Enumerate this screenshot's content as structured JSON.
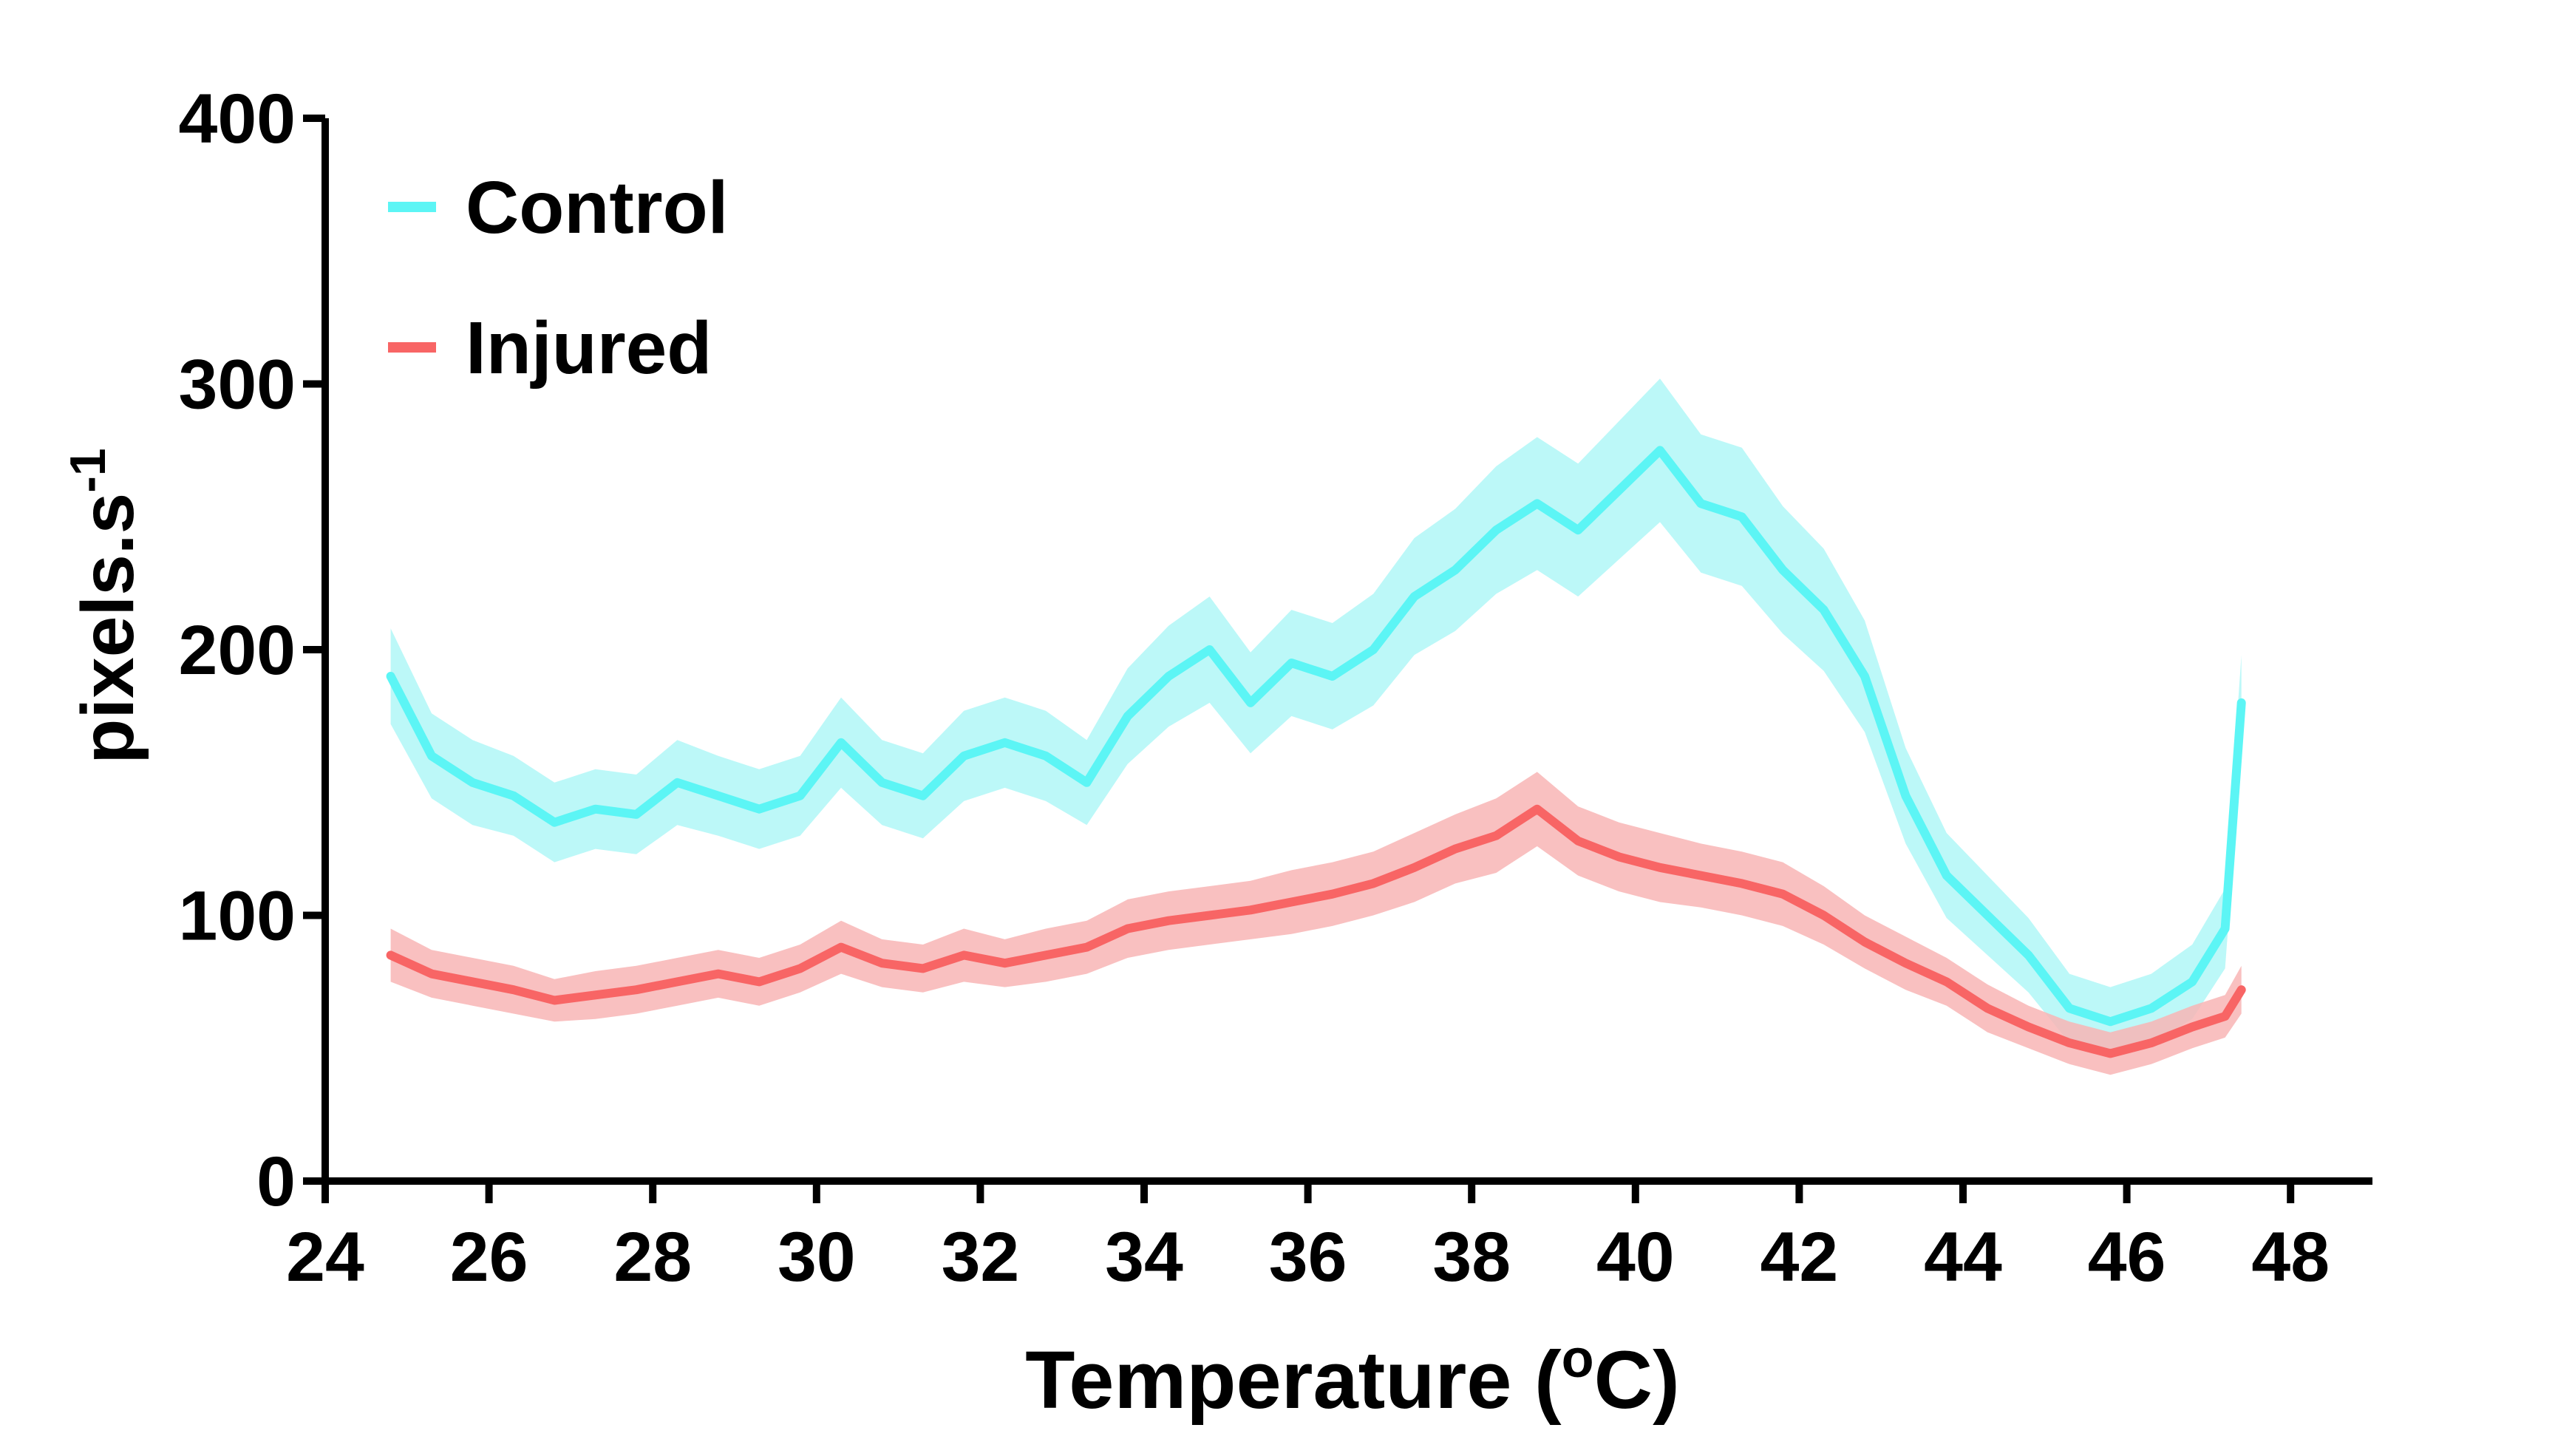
{
  "chart_data": {
    "type": "line",
    "title": "",
    "xlabel": "Temperature (",
    "xlabel_sup": "o",
    "xlabel_end": "C)",
    "ylabel": "pixels.s",
    "ylabel_sup": "-1",
    "xlim": [
      24,
      49
    ],
    "ylim": [
      0,
      400
    ],
    "xticks": [
      24,
      26,
      28,
      30,
      32,
      34,
      36,
      38,
      40,
      42,
      44,
      46,
      48
    ],
    "yticks": [
      0,
      100,
      200,
      300,
      400
    ],
    "grid": false,
    "legend_position": "top-left",
    "x": [
      24.8,
      25.3,
      25.8,
      26.3,
      26.8,
      27.3,
      27.8,
      28.3,
      28.8,
      29.3,
      29.8,
      30.3,
      30.8,
      31.3,
      31.8,
      32.3,
      32.8,
      33.3,
      33.8,
      34.3,
      34.8,
      35.3,
      35.8,
      36.3,
      36.8,
      37.3,
      37.8,
      38.3,
      38.8,
      39.3,
      39.8,
      40.3,
      40.8,
      41.3,
      41.8,
      42.3,
      42.8,
      43.3,
      43.8,
      44.3,
      44.8,
      45.3,
      45.8,
      46.3,
      46.8,
      47.2,
      47.4
    ],
    "series": [
      {
        "name": "Control",
        "color": "#5cf5f5",
        "band_color": "#b0f7f7",
        "values": [
          190,
          160,
          150,
          145,
          135,
          140,
          138,
          150,
          145,
          140,
          145,
          165,
          150,
          145,
          160,
          165,
          160,
          150,
          175,
          190,
          200,
          180,
          195,
          190,
          200,
          220,
          230,
          245,
          255,
          245,
          260,
          275,
          255,
          250,
          230,
          215,
          190,
          145,
          115,
          100,
          85,
          65,
          60,
          65,
          75,
          95,
          180
        ],
        "errors": [
          18,
          16,
          16,
          15,
          15,
          15,
          15,
          16,
          15,
          15,
          15,
          17,
          16,
          16,
          17,
          17,
          17,
          16,
          18,
          19,
          20,
          19,
          20,
          20,
          21,
          22,
          23,
          24,
          25,
          25,
          26,
          27,
          26,
          26,
          24,
          23,
          21,
          18,
          16,
          15,
          14,
          13,
          13,
          13,
          14,
          15,
          18
        ]
      },
      {
        "name": "Injured",
        "color": "#f86565",
        "band_color": "#f8b5b5",
        "values": [
          85,
          78,
          75,
          72,
          68,
          70,
          72,
          75,
          78,
          75,
          80,
          88,
          82,
          80,
          85,
          82,
          85,
          88,
          95,
          98,
          100,
          102,
          105,
          108,
          112,
          118,
          125,
          130,
          140,
          128,
          122,
          118,
          115,
          112,
          108,
          100,
          90,
          82,
          75,
          65,
          58,
          52,
          48,
          52,
          58,
          62,
          72
        ],
        "errors": [
          10,
          9,
          9,
          9,
          8,
          9,
          9,
          9,
          9,
          9,
          9,
          10,
          9,
          9,
          10,
          9,
          10,
          10,
          11,
          11,
          11,
          11,
          12,
          12,
          12,
          13,
          13,
          14,
          14,
          13,
          13,
          13,
          12,
          12,
          12,
          11,
          10,
          10,
          9,
          9,
          8,
          8,
          8,
          8,
          8,
          8,
          9
        ]
      }
    ]
  }
}
